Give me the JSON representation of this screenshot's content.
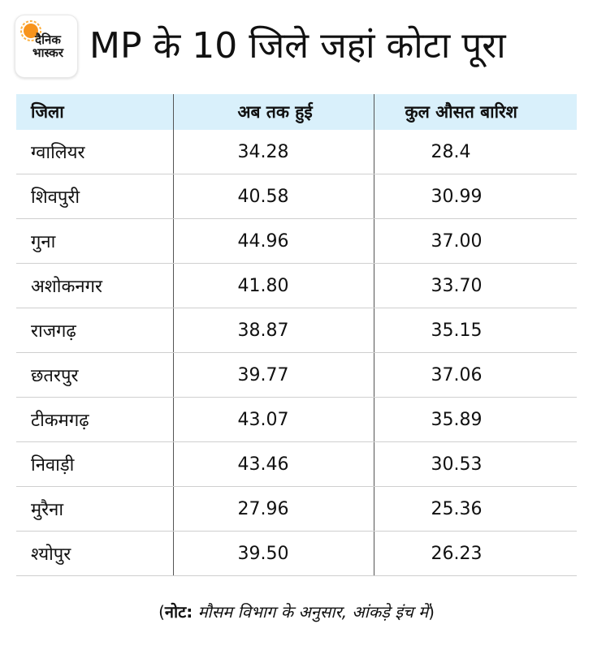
{
  "logo": {
    "text": "दैनिक भास्कर",
    "icon": "dainik-bhaskar-sun-logo",
    "accent": "#f7941d"
  },
  "title": "MP के 10 जिले जहां कोटा पूरा",
  "table": {
    "headers": [
      "जिला",
      "अब तक हुई",
      "कुल औसत बारिश"
    ],
    "rows": [
      [
        "ग्वालियर",
        "34.28",
        "28.4"
      ],
      [
        "शिवपुरी",
        "40.58",
        "30.99"
      ],
      [
        "गुना",
        "44.96",
        "37.00"
      ],
      [
        "अशोकनगर",
        "41.80",
        "33.70"
      ],
      [
        "राजगढ़",
        "38.87",
        "35.15"
      ],
      [
        "छतरपुर",
        "39.77",
        "37.06"
      ],
      [
        "टीकमगढ़",
        "43.07",
        "35.89"
      ],
      [
        "निवाड़ी",
        "43.46",
        "30.53"
      ],
      [
        "मुरैना",
        "27.96",
        "25.36"
      ],
      [
        "श्योपुर",
        "39.50",
        "26.23"
      ]
    ]
  },
  "note": {
    "open": "(",
    "label": "नोट:",
    "text": " मौसम विभाग के अनुसार, आंकड़े इंच में",
    "close": ")"
  },
  "colors": {
    "header_bg": "#d9f0fb"
  }
}
